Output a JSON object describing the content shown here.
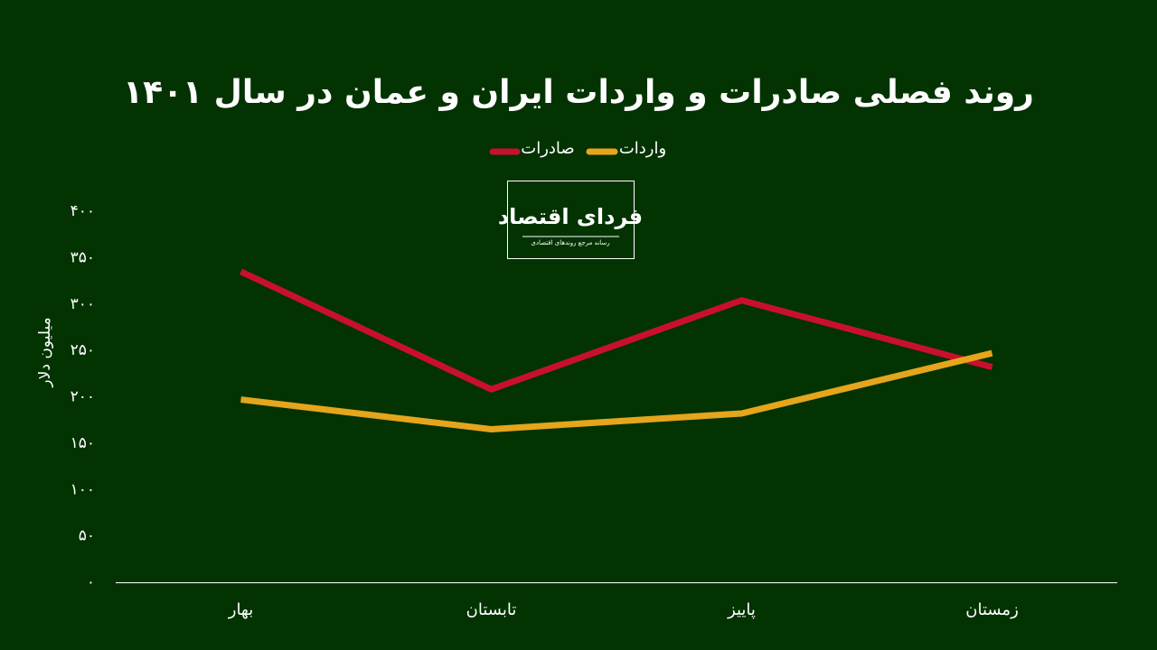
{
  "chart_data": {
    "type": "line",
    "title": "روند فصلی صادرات و واردات ایران و عمان در سال ۱۴۰۱",
    "y_label": "میلیون دلار",
    "categories": [
      "بهار",
      "تابستان",
      "پاییز",
      "زمستان"
    ],
    "series": [
      {
        "name": "صادرات",
        "color": "#c8102e",
        "values": [
          335,
          208,
          304,
          232
        ]
      },
      {
        "name": "واردات",
        "color": "#e5a51c",
        "values": [
          197,
          165,
          182,
          247
        ]
      }
    ],
    "ylim": [
      0,
      400
    ],
    "yticks": [
      {
        "value": 0,
        "label": "۰"
      },
      {
        "value": 50,
        "label": "۵۰"
      },
      {
        "value": 100,
        "label": "۱۰۰"
      },
      {
        "value": 150,
        "label": "۱۵۰"
      },
      {
        "value": 200,
        "label": "۲۰۰"
      },
      {
        "value": 250,
        "label": "۲۵۰"
      },
      {
        "value": 300,
        "label": "۳۰۰"
      },
      {
        "value": 350,
        "label": "۳۵۰"
      },
      {
        "value": 400,
        "label": "۴۰۰"
      }
    ],
    "logo": {
      "name": "فردای اقتصاد",
      "tagline": "رسانه مرجع روندهای اقتصادی"
    }
  }
}
